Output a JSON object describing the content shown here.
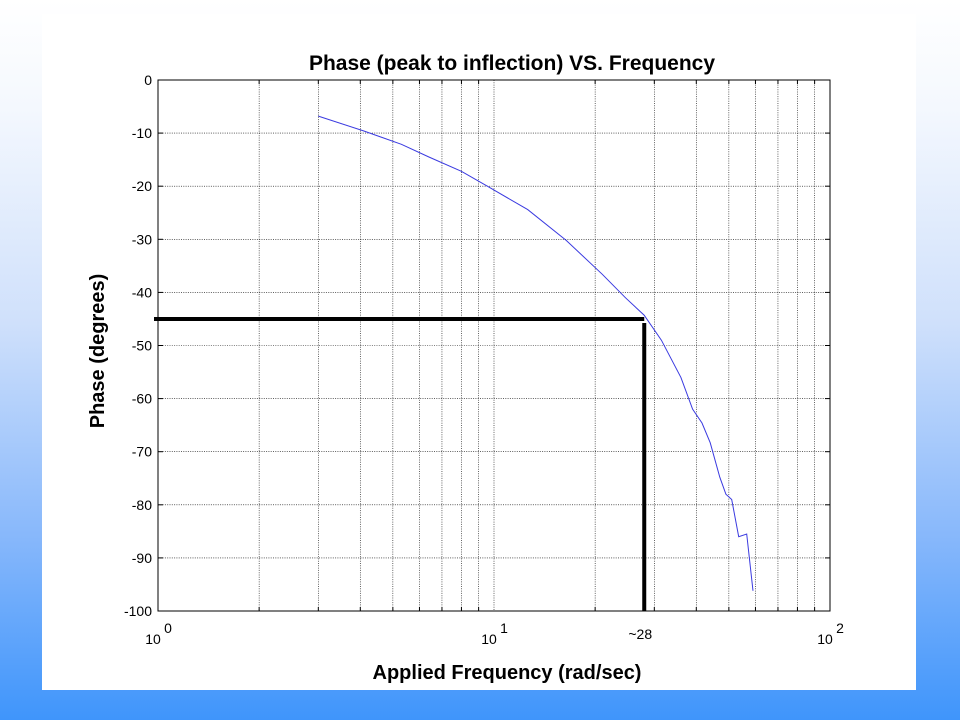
{
  "chart_data": {
    "type": "line",
    "title": "Phase (peak to inflection) VS. Frequency",
    "xlabel": "Applied Frequency (rad/sec)",
    "ylabel": "Phase (degrees)",
    "xscale": "log",
    "xlim": [
      1,
      100
    ],
    "ylim": [
      -100,
      0
    ],
    "grid": true,
    "x_ticks": [
      {
        "base": "10",
        "exp": "0",
        "value": 1
      },
      {
        "base": "10",
        "exp": "1",
        "value": 10
      },
      {
        "base": "10",
        "exp": "2",
        "value": 100
      }
    ],
    "y_ticks": [
      "0",
      "-10",
      "-20",
      "-30",
      "-40",
      "-50",
      "-60",
      "-70",
      "-80",
      "-90",
      "-100"
    ],
    "series": [
      {
        "color": "#3a3ae0",
        "x": [
          3.0,
          4.1,
          5.3,
          6.4,
          8.0,
          9.5,
          12.6,
          16.4,
          21.0,
          24.6,
          28.0,
          31.5,
          36.0,
          39.0,
          41.6,
          44.0,
          47.0,
          49.0,
          51.0,
          53.5,
          56.5,
          59.0
        ],
        "y": [
          -6.8,
          -9.6,
          -12.1,
          -14.5,
          -17.2,
          -19.9,
          -24.4,
          -30.2,
          -36.6,
          -41.0,
          -44.3,
          -49.0,
          -56.0,
          -62.0,
          -64.6,
          -68.3,
          -74.8,
          -78.0,
          -79.0,
          -86.0,
          -85.5,
          -96.2
        ]
      }
    ],
    "annotations": {
      "reference_phase": -45,
      "reference_frequency": 28,
      "reference_label": "~28",
      "reference_color": "#000000"
    }
  }
}
